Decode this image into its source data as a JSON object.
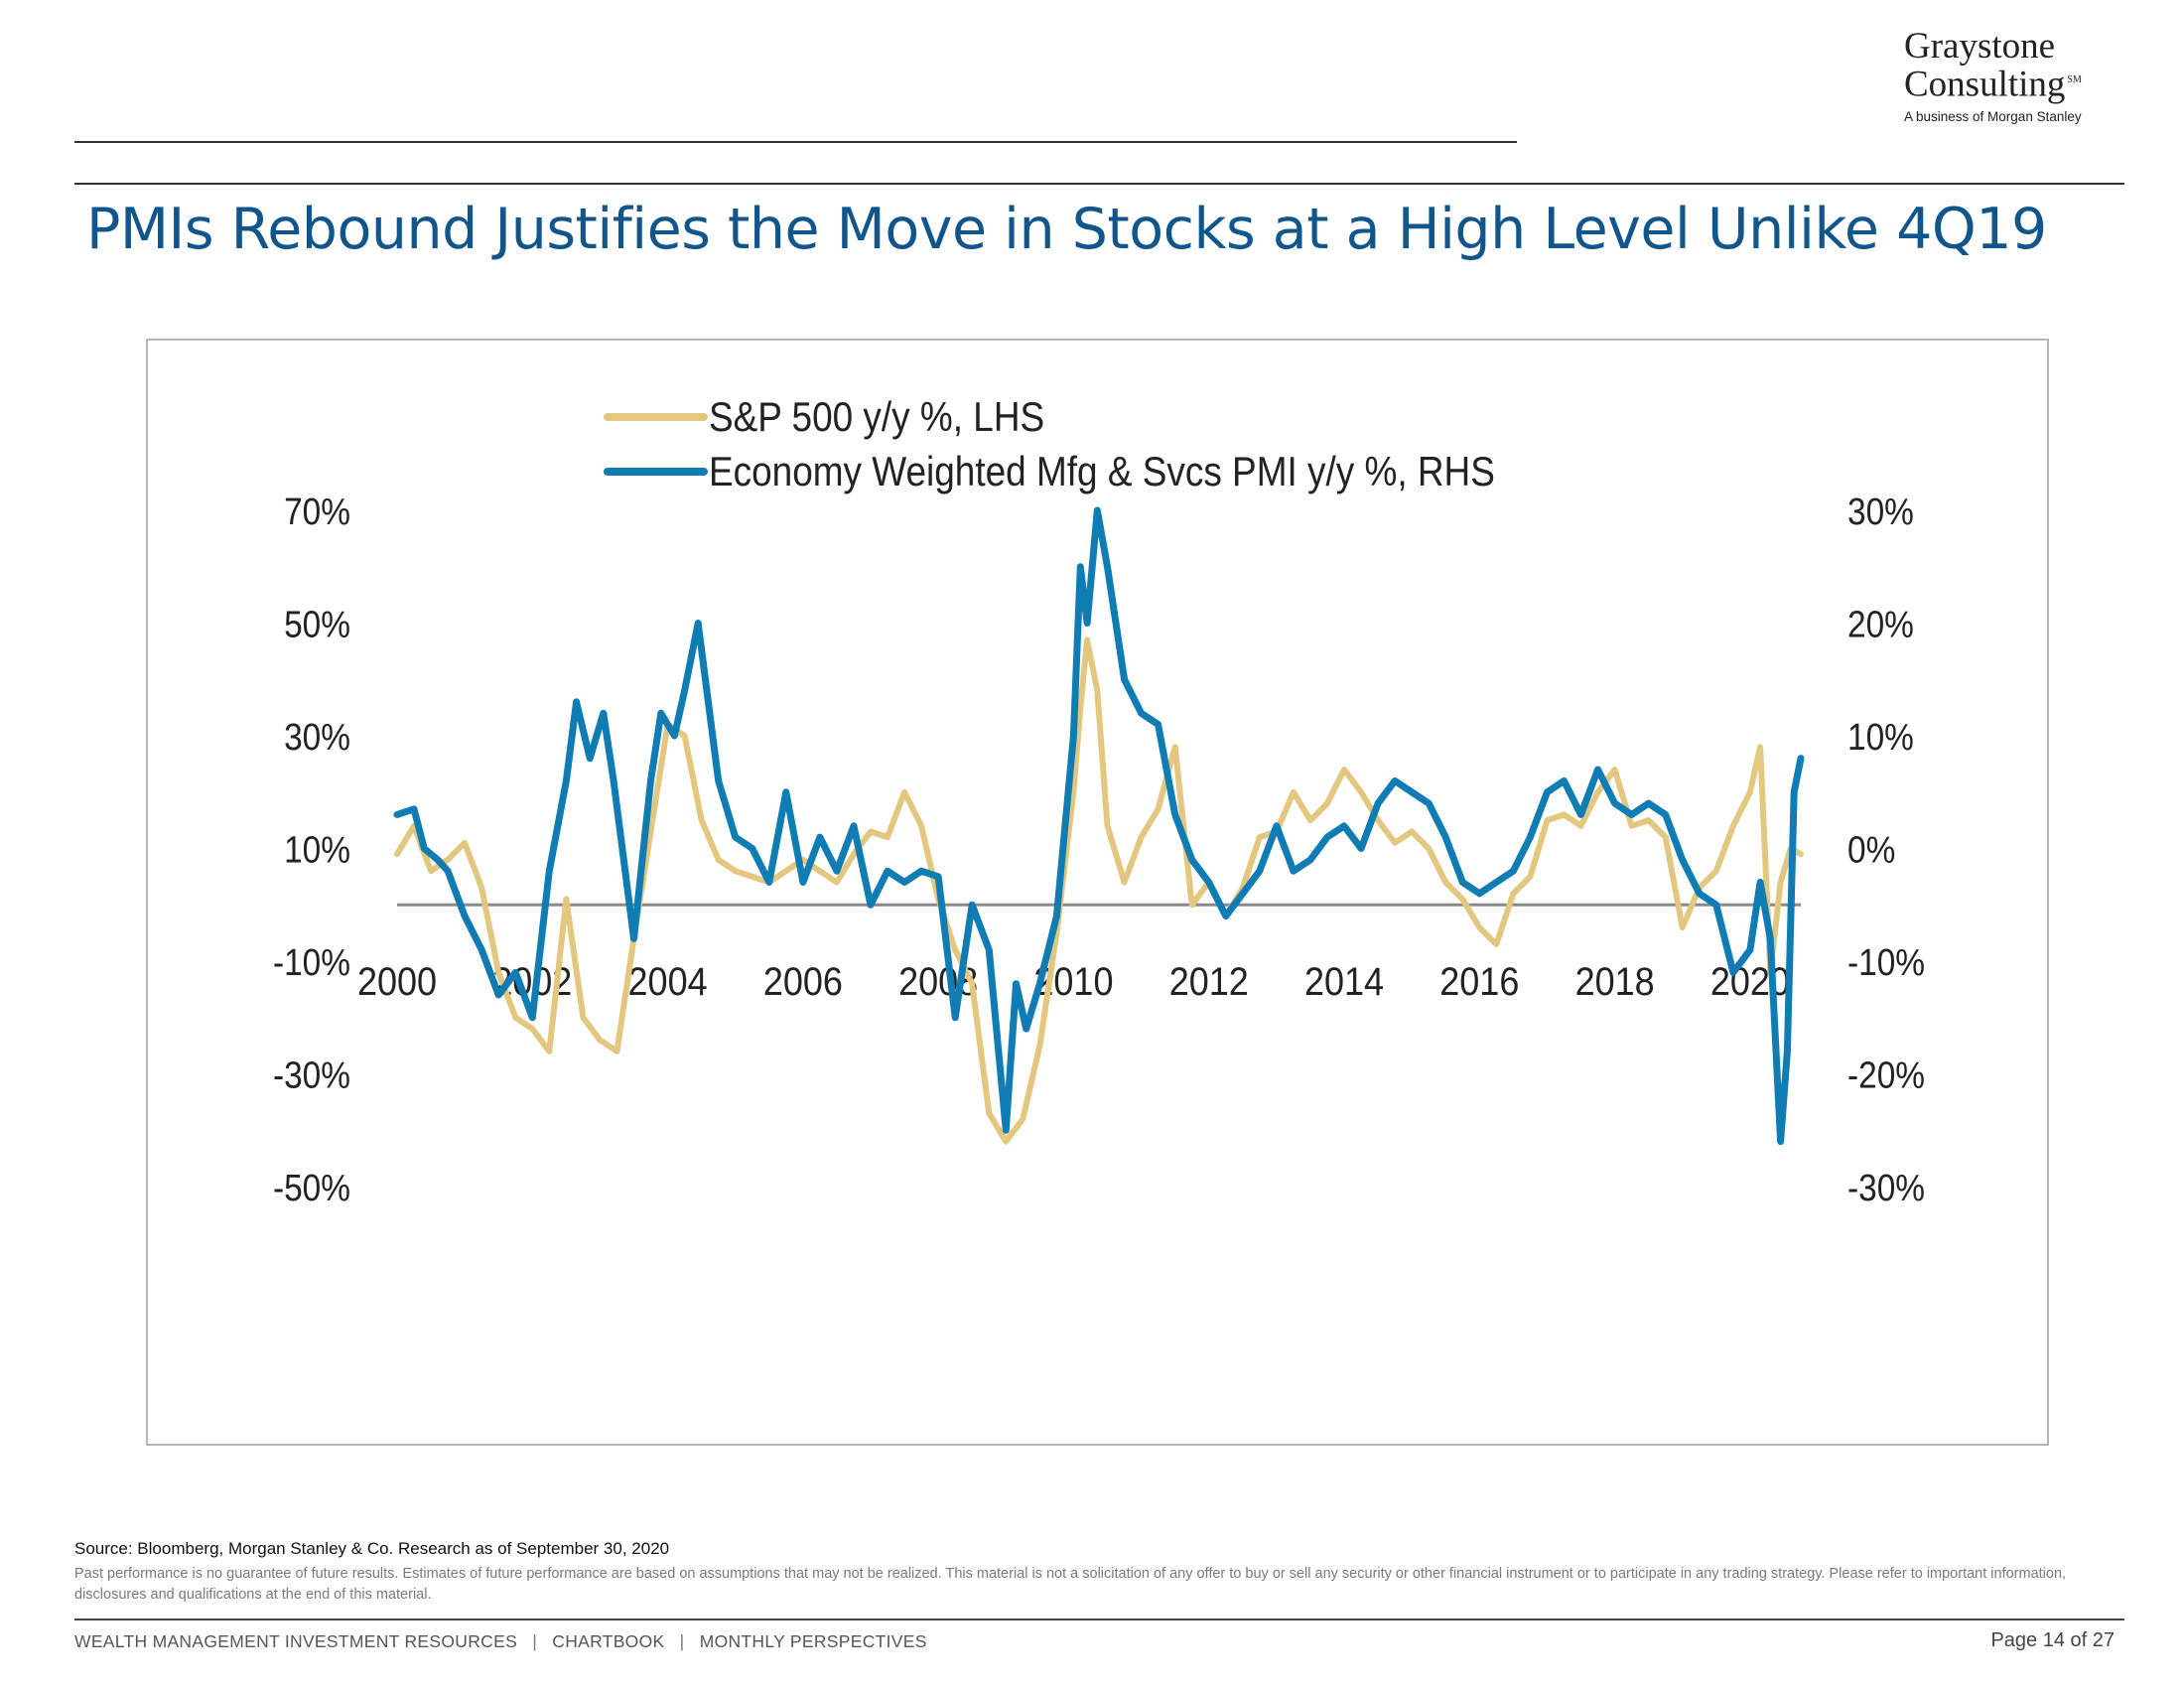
{
  "header": {
    "logo_line1": "Graystone",
    "logo_line2": "Consulting",
    "logo_mark": "SM",
    "logo_sub": "A business of Morgan Stanley"
  },
  "title": "PMIs Rebound Justifies the Move in Stocks at a High Level Unlike 4Q19",
  "chart_data": {
    "type": "line",
    "legend_position": "top-center",
    "grid": false,
    "reference_line": {
      "axis": "right",
      "value": -5
    },
    "x_ticks": [
      "2000",
      "2002",
      "2004",
      "2006",
      "2008",
      "2010",
      "2012",
      "2014",
      "2016",
      "2018",
      "2020"
    ],
    "x_range": [
      2000,
      2020.75
    ],
    "left_axis": {
      "ticks": [
        "70%",
        "50%",
        "30%",
        "10%",
        "-10%",
        "-30%",
        "-50%"
      ],
      "range": [
        -50,
        70
      ]
    },
    "right_axis": {
      "ticks": [
        "30%",
        "20%",
        "10%",
        "0%",
        "-10%",
        "-20%",
        "-30%"
      ],
      "range": [
        -30,
        30
      ]
    },
    "series": [
      {
        "name": "S&P 500 y/y %, LHS",
        "axis": "left",
        "color": "#e3c77f",
        "points": [
          [
            2000.0,
            9
          ],
          [
            2000.25,
            14
          ],
          [
            2000.5,
            6
          ],
          [
            2000.75,
            8
          ],
          [
            2001.0,
            11
          ],
          [
            2001.25,
            3
          ],
          [
            2001.5,
            -12
          ],
          [
            2001.75,
            -20
          ],
          [
            2002.0,
            -22
          ],
          [
            2002.25,
            -26
          ],
          [
            2002.5,
            1
          ],
          [
            2002.75,
            -20
          ],
          [
            2003.0,
            -24
          ],
          [
            2003.25,
            -26
          ],
          [
            2003.5,
            -6
          ],
          [
            2003.75,
            13
          ],
          [
            2004.0,
            32
          ],
          [
            2004.25,
            30
          ],
          [
            2004.5,
            15
          ],
          [
            2004.75,
            8
          ],
          [
            2005.0,
            6
          ],
          [
            2005.5,
            4
          ],
          [
            2006.0,
            8
          ],
          [
            2006.25,
            6
          ],
          [
            2006.5,
            4
          ],
          [
            2006.75,
            9
          ],
          [
            2007.0,
            13
          ],
          [
            2007.25,
            12
          ],
          [
            2007.5,
            20
          ],
          [
            2007.75,
            14
          ],
          [
            2008.0,
            1
          ],
          [
            2008.25,
            -8
          ],
          [
            2008.5,
            -14
          ],
          [
            2008.75,
            -37
          ],
          [
            2009.0,
            -42
          ],
          [
            2009.25,
            -38
          ],
          [
            2009.5,
            -25
          ],
          [
            2009.75,
            -5
          ],
          [
            2010.0,
            20
          ],
          [
            2010.1,
            35
          ],
          [
            2010.2,
            47
          ],
          [
            2010.35,
            38
          ],
          [
            2010.5,
            14
          ],
          [
            2010.75,
            4
          ],
          [
            2011.0,
            12
          ],
          [
            2011.25,
            17
          ],
          [
            2011.5,
            28
          ],
          [
            2011.75,
            0
          ],
          [
            2012.0,
            4
          ],
          [
            2012.25,
            -2
          ],
          [
            2012.5,
            3
          ],
          [
            2012.75,
            12
          ],
          [
            2013.0,
            13
          ],
          [
            2013.25,
            20
          ],
          [
            2013.5,
            15
          ],
          [
            2013.75,
            18
          ],
          [
            2014.0,
            24
          ],
          [
            2014.25,
            20
          ],
          [
            2014.5,
            15
          ],
          [
            2014.75,
            11
          ],
          [
            2015.0,
            13
          ],
          [
            2015.25,
            10
          ],
          [
            2015.5,
            4
          ],
          [
            2015.75,
            1
          ],
          [
            2016.0,
            -4
          ],
          [
            2016.25,
            -7
          ],
          [
            2016.5,
            2
          ],
          [
            2016.75,
            5
          ],
          [
            2017.0,
            15
          ],
          [
            2017.25,
            16
          ],
          [
            2017.5,
            14
          ],
          [
            2017.75,
            20
          ],
          [
            2018.0,
            24
          ],
          [
            2018.25,
            14
          ],
          [
            2018.5,
            15
          ],
          [
            2018.75,
            12
          ],
          [
            2019.0,
            -4
          ],
          [
            2019.25,
            3
          ],
          [
            2019.5,
            6
          ],
          [
            2019.75,
            14
          ],
          [
            2020.0,
            20
          ],
          [
            2020.15,
            28
          ],
          [
            2020.3,
            -12
          ],
          [
            2020.45,
            4
          ],
          [
            2020.6,
            10
          ],
          [
            2020.75,
            9
          ]
        ]
      },
      {
        "name": "Economy Weighted Mfg & Svcs PMI y/y %, RHS",
        "axis": "right",
        "color": "#0f7db4",
        "points": [
          [
            2000.0,
            3
          ],
          [
            2000.25,
            3.5
          ],
          [
            2000.4,
            0
          ],
          [
            2000.6,
            -1
          ],
          [
            2000.75,
            -2
          ],
          [
            2001.0,
            -6
          ],
          [
            2001.25,
            -9
          ],
          [
            2001.5,
            -13
          ],
          [
            2001.75,
            -11
          ],
          [
            2002.0,
            -15
          ],
          [
            2002.25,
            -2
          ],
          [
            2002.5,
            6
          ],
          [
            2002.65,
            13
          ],
          [
            2002.85,
            8
          ],
          [
            2003.05,
            12
          ],
          [
            2003.2,
            6
          ],
          [
            2003.5,
            -8
          ],
          [
            2003.75,
            6
          ],
          [
            2003.9,
            12
          ],
          [
            2004.1,
            10
          ],
          [
            2004.25,
            14
          ],
          [
            2004.45,
            20
          ],
          [
            2004.75,
            6
          ],
          [
            2005.0,
            1
          ],
          [
            2005.25,
            0
          ],
          [
            2005.5,
            -3
          ],
          [
            2005.75,
            5
          ],
          [
            2006.0,
            -3
          ],
          [
            2006.25,
            1
          ],
          [
            2006.5,
            -2
          ],
          [
            2006.75,
            2
          ],
          [
            2007.0,
            -5
          ],
          [
            2007.25,
            -2
          ],
          [
            2007.5,
            -3
          ],
          [
            2007.75,
            -2
          ],
          [
            2008.0,
            -2.5
          ],
          [
            2008.25,
            -15
          ],
          [
            2008.5,
            -5
          ],
          [
            2008.75,
            -9
          ],
          [
            2009.0,
            -25
          ],
          [
            2009.15,
            -12
          ],
          [
            2009.3,
            -16
          ],
          [
            2009.5,
            -12
          ],
          [
            2009.75,
            -6
          ],
          [
            2010.0,
            10
          ],
          [
            2010.1,
            25
          ],
          [
            2010.2,
            20
          ],
          [
            2010.35,
            30
          ],
          [
            2010.5,
            25
          ],
          [
            2010.75,
            15
          ],
          [
            2011.0,
            12
          ],
          [
            2011.25,
            11
          ],
          [
            2011.5,
            3
          ],
          [
            2011.75,
            -1
          ],
          [
            2012.0,
            -3
          ],
          [
            2012.25,
            -6
          ],
          [
            2012.5,
            -4
          ],
          [
            2012.75,
            -2
          ],
          [
            2013.0,
            2
          ],
          [
            2013.25,
            -2
          ],
          [
            2013.5,
            -1
          ],
          [
            2013.75,
            1
          ],
          [
            2014.0,
            2
          ],
          [
            2014.25,
            0
          ],
          [
            2014.5,
            4
          ],
          [
            2014.75,
            6
          ],
          [
            2015.0,
            5
          ],
          [
            2015.25,
            4
          ],
          [
            2015.5,
            1
          ],
          [
            2015.75,
            -3
          ],
          [
            2016.0,
            -4
          ],
          [
            2016.25,
            -3
          ],
          [
            2016.5,
            -2
          ],
          [
            2016.75,
            1
          ],
          [
            2017.0,
            5
          ],
          [
            2017.25,
            6
          ],
          [
            2017.5,
            3
          ],
          [
            2017.75,
            7
          ],
          [
            2018.0,
            4
          ],
          [
            2018.25,
            3
          ],
          [
            2018.5,
            4
          ],
          [
            2018.75,
            3
          ],
          [
            2019.0,
            -1
          ],
          [
            2019.25,
            -4
          ],
          [
            2019.5,
            -5
          ],
          [
            2019.75,
            -11
          ],
          [
            2020.0,
            -9
          ],
          [
            2020.15,
            -3
          ],
          [
            2020.3,
            -8
          ],
          [
            2020.45,
            -26
          ],
          [
            2020.55,
            -18
          ],
          [
            2020.65,
            5
          ],
          [
            2020.75,
            8
          ]
        ]
      }
    ]
  },
  "source": "Source: Bloomberg,  Morgan Stanley & Co. Research as of  September 30, 2020",
  "disclaimer": "Past performance is no guarantee of future results. Estimates of future performance are based on assumptions that may not be realized. This material is not a solicitation of any offer to buy or sell any security or other financial instrument or to participate in any trading strategy. Please refer to important information, disclosures and qualifications at the end of this material.",
  "footer": {
    "items": [
      "WEALTH MANAGEMENT INVESTMENT RESOURCES",
      "CHARTBOOK",
      "MONTHLY PERSPECTIVES"
    ],
    "separator": "|",
    "page": "Page 14 of 27"
  }
}
